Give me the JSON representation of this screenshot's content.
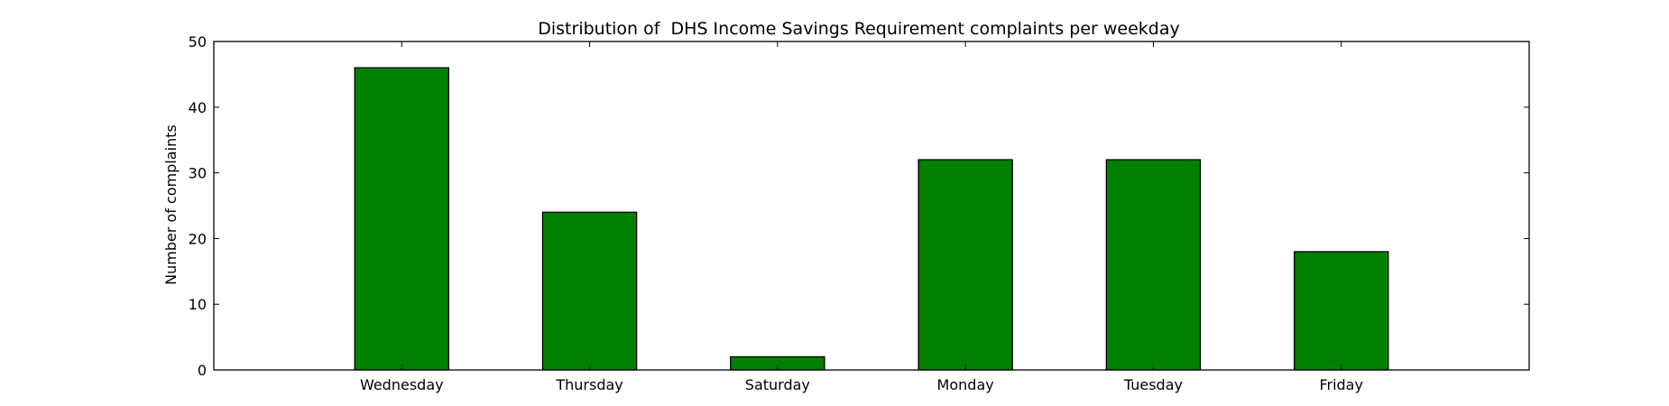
{
  "chart_data": {
    "type": "bar",
    "title": "Distribution of  DHS Income Savings Requirement complaints per weekday",
    "xlabel": "",
    "ylabel": "Number of complaints",
    "categories": [
      "Wednesday",
      "Thursday",
      "Saturday",
      "Monday",
      "Tuesday",
      "Friday"
    ],
    "values": [
      46,
      24,
      2,
      32,
      32,
      18
    ],
    "ylim": [
      0,
      50
    ],
    "yticks": [
      0,
      10,
      20,
      30,
      40,
      50
    ],
    "grid": false,
    "legend": "none",
    "bar_color": "#008000",
    "edge_color": "#000000"
  }
}
